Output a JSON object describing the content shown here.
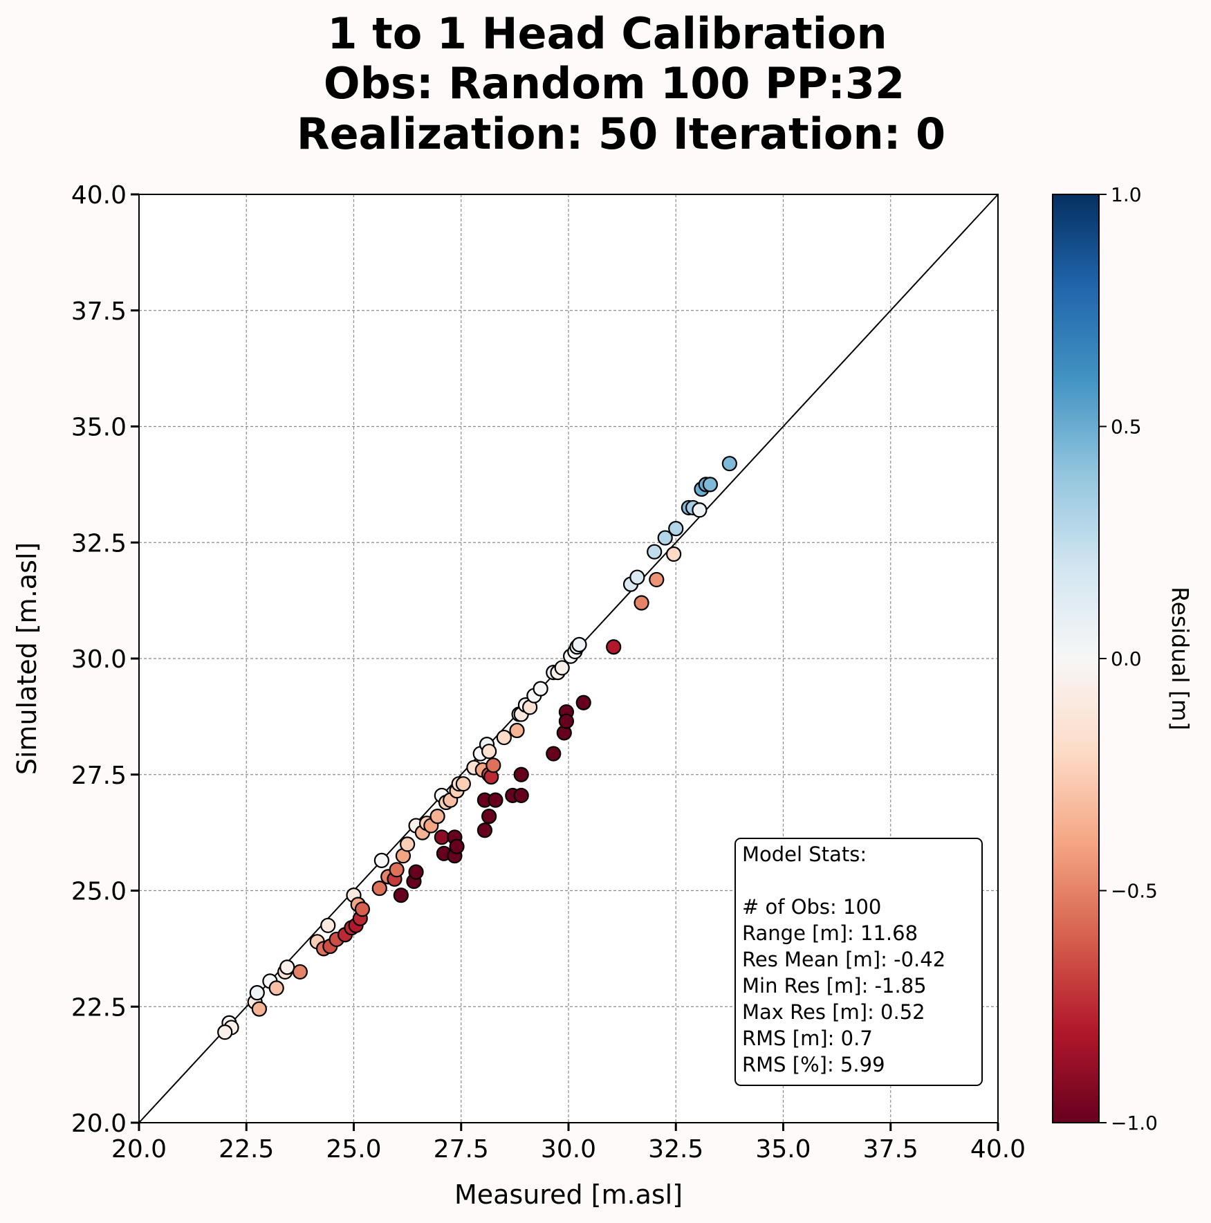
{
  "chart_data": {
    "type": "scatter",
    "title_lines": [
      "1 to 1 Head Calibration",
      "Obs: Random 100    PP:32",
      "Realization: 50  Iteration: 0"
    ],
    "xlabel": "Measured [m.asl]",
    "ylabel": "Simulated [m.asl]",
    "xlim": [
      20.0,
      40.0
    ],
    "ylim": [
      20.0,
      40.0
    ],
    "xticks": [
      "20.0",
      "22.5",
      "25.0",
      "27.5",
      "30.0",
      "32.5",
      "35.0",
      "37.5",
      "40.0"
    ],
    "yticks": [
      "20.0",
      "22.5",
      "25.0",
      "27.5",
      "30.0",
      "32.5",
      "35.0",
      "37.5",
      "40.0"
    ],
    "grid": true,
    "reference_line": "1:1",
    "colorbar": {
      "label": "Residual [m]",
      "colormap": "RdBu",
      "range": [
        -1.0,
        1.0
      ],
      "ticks": [
        "1.0",
        "0.5",
        "0.0",
        "−0.5",
        "−1.0"
      ]
    },
    "points": [
      [
        22.1,
        22.15,
        -0.02
      ],
      [
        22.15,
        22.05,
        -0.05
      ],
      [
        22.7,
        22.6,
        -0.1
      ],
      [
        22.75,
        22.8,
        0.05
      ],
      [
        22.8,
        22.45,
        -0.35
      ],
      [
        23.05,
        23.05,
        0.0
      ],
      [
        23.2,
        22.9,
        -0.3
      ],
      [
        23.4,
        23.25,
        -0.15
      ],
      [
        23.45,
        23.35,
        -0.05
      ],
      [
        23.75,
        23.25,
        -0.5
      ],
      [
        24.15,
        23.9,
        -0.25
      ],
      [
        24.3,
        23.75,
        -0.55
      ],
      [
        24.4,
        24.25,
        -0.1
      ],
      [
        24.45,
        23.8,
        -0.65
      ],
      [
        24.6,
        23.95,
        -0.65
      ],
      [
        24.8,
        24.05,
        -0.75
      ],
      [
        24.95,
        24.2,
        -0.75
      ],
      [
        25.0,
        24.9,
        -0.1
      ],
      [
        25.05,
        24.25,
        -0.8
      ],
      [
        25.1,
        24.7,
        -0.4
      ],
      [
        25.15,
        24.4,
        -0.75
      ],
      [
        25.2,
        24.6,
        -0.6
      ],
      [
        25.6,
        25.05,
        -0.55
      ],
      [
        25.65,
        25.65,
        0.0
      ],
      [
        25.8,
        25.3,
        -0.5
      ],
      [
        25.95,
        25.25,
        -0.7
      ],
      [
        26.0,
        25.45,
        -0.55
      ],
      [
        26.1,
        24.9,
        -1.2
      ],
      [
        26.15,
        25.75,
        -0.4
      ],
      [
        26.25,
        26.0,
        -0.25
      ],
      [
        26.4,
        25.2,
        -1.2
      ],
      [
        26.45,
        26.4,
        -0.05
      ],
      [
        26.45,
        25.4,
        -1.05
      ],
      [
        26.6,
        26.25,
        -0.35
      ],
      [
        26.7,
        26.45,
        -0.25
      ],
      [
        26.8,
        26.4,
        -0.4
      ],
      [
        26.95,
        26.6,
        -0.35
      ],
      [
        27.05,
        27.05,
        0.0
      ],
      [
        27.05,
        26.15,
        -0.9
      ],
      [
        27.1,
        25.8,
        -1.3
      ],
      [
        27.15,
        26.9,
        -0.25
      ],
      [
        27.25,
        26.95,
        -0.3
      ],
      [
        27.35,
        25.75,
        -1.6
      ],
      [
        27.35,
        26.15,
        -1.2
      ],
      [
        27.4,
        25.95,
        -1.45
      ],
      [
        27.4,
        27.15,
        -0.25
      ],
      [
        27.45,
        27.3,
        -0.15
      ],
      [
        27.55,
        27.3,
        -0.25
      ],
      [
        27.8,
        27.65,
        -0.15
      ],
      [
        27.95,
        27.95,
        0.0
      ],
      [
        28.0,
        27.6,
        -0.4
      ],
      [
        28.05,
        26.3,
        -1.75
      ],
      [
        28.05,
        26.95,
        -1.1
      ],
      [
        28.1,
        28.15,
        0.05
      ],
      [
        28.15,
        27.5,
        -0.65
      ],
      [
        28.15,
        28.0,
        -0.15
      ],
      [
        28.15,
        26.6,
        -1.55
      ],
      [
        28.2,
        27.45,
        -0.75
      ],
      [
        28.25,
        27.7,
        -0.55
      ],
      [
        28.3,
        26.95,
        -1.35
      ],
      [
        28.5,
        28.3,
        -0.2
      ],
      [
        28.7,
        27.05,
        -1.65
      ],
      [
        28.8,
        28.45,
        -0.35
      ],
      [
        28.85,
        28.8,
        -0.05
      ],
      [
        28.9,
        28.8,
        -0.1
      ],
      [
        28.9,
        27.05,
        -1.85
      ],
      [
        28.9,
        27.5,
        -1.4
      ],
      [
        29.0,
        29.0,
        0.0
      ],
      [
        29.1,
        28.95,
        -0.15
      ],
      [
        29.2,
        29.2,
        0.0
      ],
      [
        29.35,
        29.35,
        0.0
      ],
      [
        29.65,
        27.95,
        -1.7
      ],
      [
        29.65,
        29.7,
        0.05
      ],
      [
        29.75,
        29.7,
        -0.05
      ],
      [
        29.85,
        29.8,
        -0.05
      ],
      [
        29.9,
        28.4,
        -1.5
      ],
      [
        29.95,
        28.85,
        -1.1
      ],
      [
        29.95,
        28.65,
        -1.3
      ],
      [
        30.05,
        30.05,
        0.0
      ],
      [
        30.15,
        30.15,
        0.0
      ],
      [
        30.2,
        30.25,
        0.05
      ],
      [
        30.25,
        30.3,
        0.05
      ],
      [
        30.35,
        29.05,
        -1.3
      ],
      [
        31.05,
        30.25,
        -0.8
      ],
      [
        31.45,
        31.6,
        0.15
      ],
      [
        31.6,
        31.75,
        0.15
      ],
      [
        31.7,
        31.2,
        -0.5
      ],
      [
        32.0,
        32.3,
        0.25
      ],
      [
        32.05,
        31.7,
        -0.45
      ],
      [
        32.25,
        32.6,
        0.3
      ],
      [
        32.45,
        32.25,
        -0.2
      ],
      [
        32.5,
        32.8,
        0.3
      ],
      [
        32.8,
        33.25,
        0.45
      ],
      [
        32.9,
        33.25,
        0.35
      ],
      [
        33.05,
        33.2,
        0.05
      ],
      [
        33.1,
        33.65,
        0.5
      ],
      [
        33.2,
        33.75,
        0.5
      ],
      [
        33.3,
        33.75,
        0.45
      ],
      [
        33.75,
        34.2,
        0.45
      ],
      [
        22.0,
        21.95,
        -0.05
      ]
    ],
    "stats_box": {
      "heading": "Model Stats:",
      "lines": [
        "# of Obs: 100",
        "Range [m]: 11.68",
        "Res Mean [m]: -0.42",
        "Min Res [m]: -1.85",
        "Max Res [m]: 0.52",
        "RMS [m]: 0.7",
        "RMS [%]: 5.99"
      ]
    }
  }
}
